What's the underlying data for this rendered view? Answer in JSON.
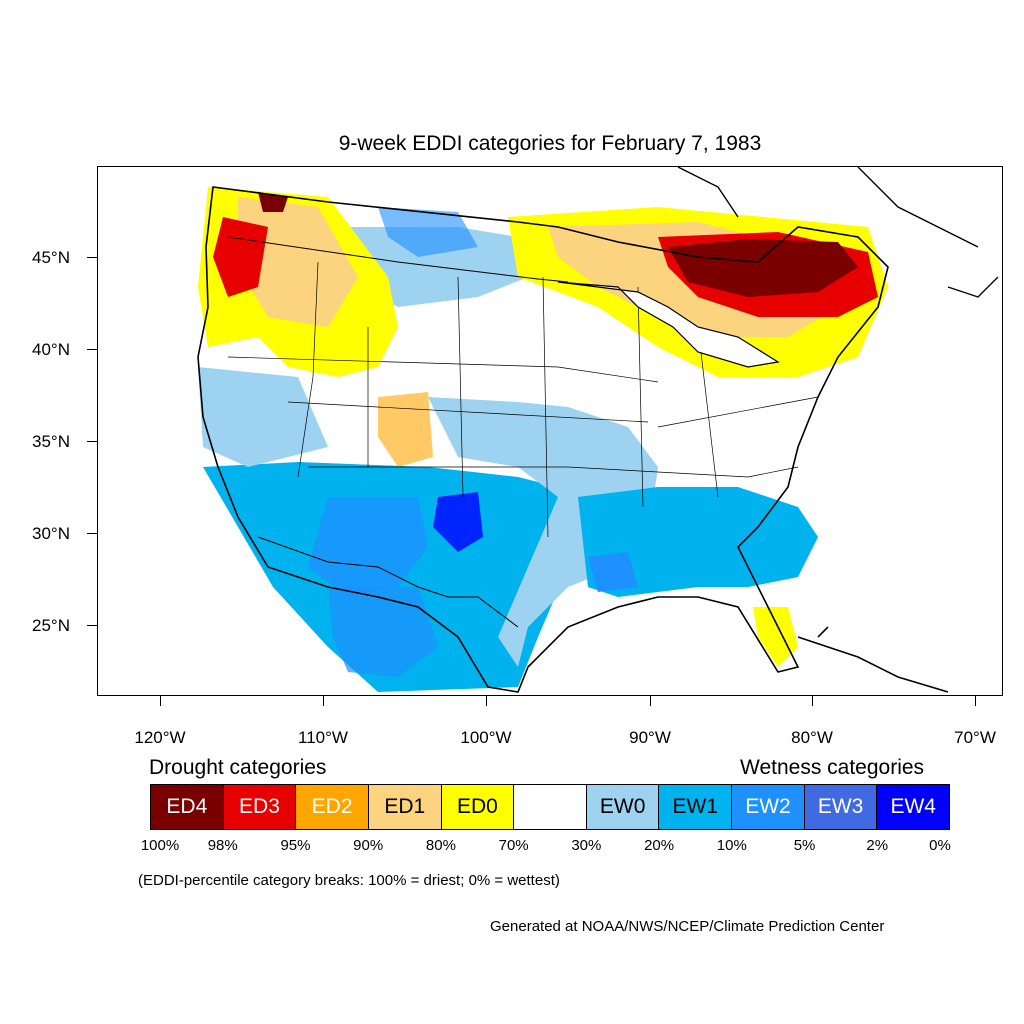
{
  "title": "9-week EDDI categories for February 7, 1983",
  "lat_labels": [
    "45°N",
    "40°N",
    "35°N",
    "30°N",
    "25°N"
  ],
  "lon_labels": [
    "120°W",
    "110°W",
    "100°W",
    "90°W",
    "80°W",
    "70°W"
  ],
  "drought_heading": "Drought categories",
  "wetness_heading": "Wetness categories",
  "legend": [
    {
      "label": "ED4",
      "color": "#7a0000",
      "text_color": "#ffffff"
    },
    {
      "label": "ED3",
      "color": "#e60000",
      "text_color": "#ffffff"
    },
    {
      "label": "ED2",
      "color": "#ffa500",
      "text_color": "#ffffff"
    },
    {
      "label": "ED1",
      "color": "#fcd37f",
      "text_color": "#000000"
    },
    {
      "label": "ED0",
      "color": "#ffff00",
      "text_color": "#000000"
    },
    {
      "label": "",
      "color": "#ffffff",
      "text_color": "#000000"
    },
    {
      "label": "EW0",
      "color": "#9dd3f0",
      "text_color": "#000000"
    },
    {
      "label": "EW1",
      "color": "#00b2ee",
      "text_color": "#000000"
    },
    {
      "label": "EW2",
      "color": "#1e90ff",
      "text_color": "#ffffff"
    },
    {
      "label": "EW3",
      "color": "#4169e1",
      "text_color": "#ffffff"
    },
    {
      "label": "EW4",
      "color": "#0000ff",
      "text_color": "#ffffff"
    }
  ],
  "percentiles": [
    "100%",
    "98%",
    "95%",
    "90%",
    "80%",
    "70%",
    "30%",
    "20%",
    "10%",
    "5%",
    "2%",
    "0%"
  ],
  "note": "(EDDI-percentile category breaks: 100% = driest; 0% = wettest)",
  "credit": "Generated at NOAA/NWS/NCEP/Climate Prediction Center"
}
